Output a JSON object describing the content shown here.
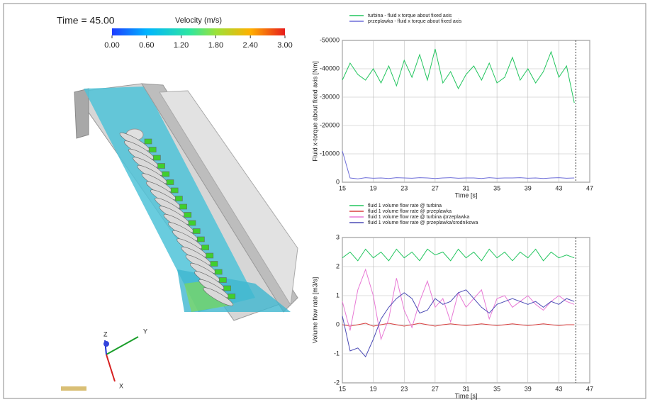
{
  "scene": {
    "time": "Time = 45.00",
    "colorbar": {
      "title": "Velocity (m/s)",
      "clim": [
        0,
        3
      ],
      "ticks": [
        {
          "value": 0,
          "label": "0.00"
        },
        {
          "value": 0.6,
          "label": "0.60"
        },
        {
          "value": 1.2,
          "label": "1.20"
        },
        {
          "value": 1.8,
          "label": "1.80"
        },
        {
          "value": 2.4,
          "label": "2.40"
        },
        {
          "value": 3,
          "label": "3.00"
        }
      ]
    },
    "axes": [
      "Z",
      "Y",
      "X"
    ]
  },
  "chart_data": [
    {
      "type": "line",
      "xlabel": "Time [s]",
      "ylabel": "Fluid x-torque about fixed axis [Nm]",
      "x": [
        15,
        16,
        17,
        18,
        19,
        20,
        21,
        22,
        23,
        24,
        25,
        26,
        27,
        28,
        29,
        30,
        31,
        32,
        33,
        34,
        35,
        36,
        37,
        38,
        39,
        40,
        41,
        42,
        43,
        44,
        45
      ],
      "series": [
        {
          "name": "turbina - fluid x torque about fixed axis",
          "color": "#22c55e",
          "values": [
            -36000,
            -42000,
            -38000,
            -36000,
            -40000,
            -35000,
            -41000,
            -34000,
            -43000,
            -37000,
            -45000,
            -36000,
            -47000,
            -35000,
            -39000,
            -33000,
            -38000,
            -41000,
            -36000,
            -42000,
            -35000,
            -37000,
            -44000,
            -36000,
            -40000,
            -35000,
            -39000,
            -46000,
            -37000,
            -41000,
            -28000
          ]
        },
        {
          "name": "przeplawka - fluid x torque about fixed axis",
          "color": "#6d6dd8",
          "values": [
            -11000,
            -1500,
            -1200,
            -1600,
            -1400,
            -1500,
            -1300,
            -1600,
            -1500,
            -1400,
            -1600,
            -1500,
            -1300,
            -1500,
            -1600,
            -1400,
            -1500,
            -1500,
            -1300,
            -1600,
            -1400,
            -1500,
            -1500,
            -1600,
            -1400,
            -1500,
            -1300,
            -1500,
            -1600,
            -1400,
            -1500
          ]
        }
      ],
      "xlim": [
        15,
        47
      ],
      "xticks": [
        15,
        19,
        23,
        27,
        31,
        35,
        39,
        43,
        47
      ],
      "ylim": [
        0,
        -50000
      ],
      "yticks": [
        0,
        -10000,
        -20000,
        -30000,
        -40000,
        -50000
      ],
      "grid": true,
      "time_marker": 45.2
    },
    {
      "type": "line",
      "xlabel": "Time [s]",
      "ylabel": "Volume flow rate [m3/s]",
      "x": [
        15,
        16,
        17,
        18,
        19,
        20,
        21,
        22,
        23,
        24,
        25,
        26,
        27,
        28,
        29,
        30,
        31,
        32,
        33,
        34,
        35,
        36,
        37,
        38,
        39,
        40,
        41,
        42,
        43,
        44,
        45
      ],
      "series": [
        {
          "name": "fluid 1 volume flow rate @ turbina",
          "color": "#22c55e",
          "values": [
            2.3,
            2.5,
            2.2,
            2.6,
            2.3,
            2.5,
            2.2,
            2.6,
            2.3,
            2.5,
            2.2,
            2.6,
            2.4,
            2.5,
            2.2,
            2.6,
            2.3,
            2.5,
            2.2,
            2.6,
            2.3,
            2.5,
            2.2,
            2.5,
            2.3,
            2.6,
            2.2,
            2.5,
            2.3,
            2.4,
            2.3
          ]
        },
        {
          "name": "fluid 1 volume flow rate @ przeplawka",
          "color": "#d94040",
          "values": [
            0,
            -0.05,
            0,
            0.05,
            -0.05,
            0,
            0.05,
            0,
            -0.05,
            0,
            0.05,
            0,
            -0.05,
            0,
            0.03,
            0,
            -0.03,
            0,
            0.03,
            0,
            -0.03,
            0,
            0.03,
            0,
            -0.03,
            0,
            0.03,
            0,
            -0.03,
            0,
            0
          ]
        },
        {
          "name": "fluid 1 volume flow rate @ turbina /przeplawka",
          "color": "#e879d5",
          "values": [
            0.8,
            -0.2,
            1.2,
            1.9,
            1.0,
            -0.5,
            0.2,
            1.6,
            0.5,
            -0.1,
            0.8,
            1.5,
            0.6,
            0.9,
            0.1,
            1.1,
            0.6,
            0.9,
            1.2,
            0.2,
            0.9,
            1.0,
            0.6,
            0.8,
            1.0,
            0.7,
            0.5,
            0.8,
            1.0,
            0.8,
            0.7
          ]
        },
        {
          "name": "fluid 1 volume flow rate @ przeplawka/srodnikowa",
          "color": "#4b4bb5",
          "values": [
            0.3,
            -0.9,
            -0.8,
            -1.1,
            -0.5,
            0.2,
            0.6,
            0.9,
            1.1,
            0.9,
            0.4,
            0.5,
            0.9,
            0.7,
            0.8,
            1.1,
            1.2,
            0.9,
            0.6,
            0.4,
            0.7,
            0.8,
            0.9,
            0.8,
            0.7,
            0.8,
            0.6,
            0.8,
            0.7,
            0.9,
            0.8
          ]
        }
      ],
      "xlim": [
        15,
        47
      ],
      "xticks": [
        15,
        19,
        23,
        27,
        31,
        35,
        39,
        43,
        47
      ],
      "ylim": [
        -2,
        3
      ],
      "yticks": [
        -2,
        -1,
        0,
        1,
        2,
        3
      ],
      "grid": true,
      "time_marker": 45.2
    }
  ]
}
